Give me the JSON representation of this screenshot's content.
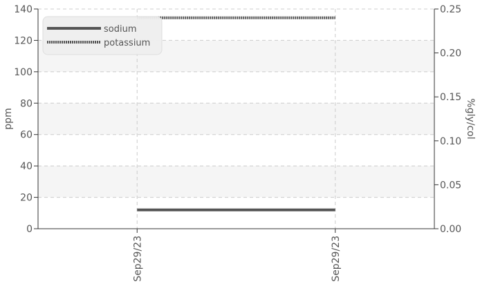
{
  "chart_data": {
    "type": "line",
    "categories": [
      "Sep29/23",
      "Sep29/23"
    ],
    "ylabel_left": "ppm",
    "ylabel_right": "%gly/col",
    "ylim_left": [
      0,
      140
    ],
    "ylim_right": [
      0.0,
      0.25
    ],
    "yticks_left": [
      "0",
      "20",
      "40",
      "60",
      "80",
      "100",
      "120",
      "140"
    ],
    "yticks_right": [
      "0.00",
      "0.05",
      "0.10",
      "0.15",
      "0.20",
      "0.25"
    ],
    "grid": true,
    "legend_position": "top-left",
    "series": [
      {
        "name": "sodium",
        "axis": "left",
        "style": "solid",
        "color": "#555555",
        "values": [
          12,
          12
        ]
      },
      {
        "name": "potassium",
        "axis": "right",
        "style": "dotted",
        "color": "#555555",
        "values": [
          0.24,
          0.24
        ]
      }
    ]
  }
}
